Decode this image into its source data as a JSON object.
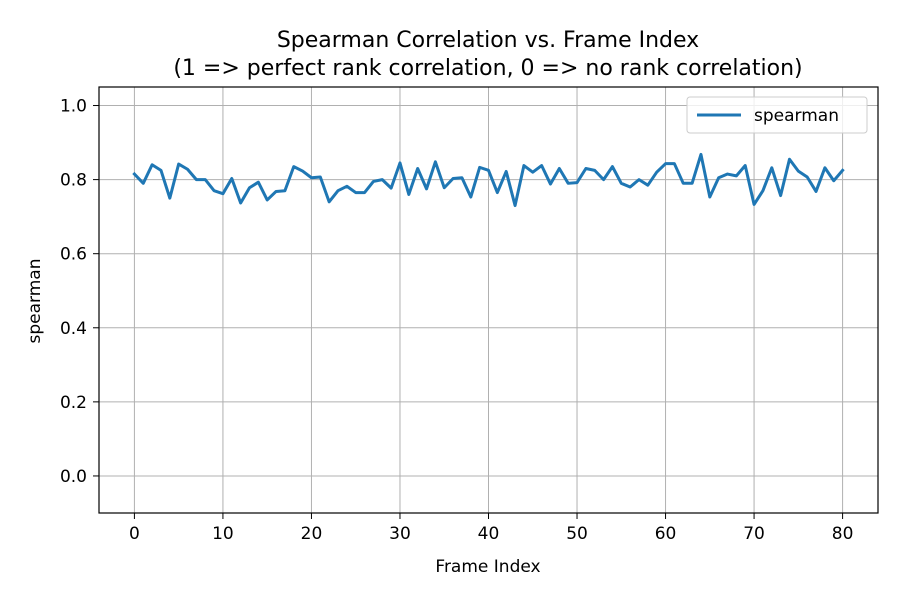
{
  "chart_data": {
    "type": "line",
    "title": "Spearman Correlation vs. Frame Index",
    "subtitle": "(1 => perfect rank correlation, 0 => no rank correlation)",
    "xlabel": "Frame Index",
    "ylabel": "spearman",
    "xlim": [
      -4,
      84
    ],
    "ylim": [
      -0.1,
      1.05
    ],
    "xticks": [
      0,
      10,
      20,
      30,
      40,
      50,
      60,
      70,
      80
    ],
    "xtick_labels": [
      "0",
      "10",
      "20",
      "30",
      "40",
      "50",
      "60",
      "70",
      "80"
    ],
    "yticks": [
      0.0,
      0.2,
      0.4,
      0.6,
      0.8,
      1.0
    ],
    "ytick_labels": [
      "0.0",
      "0.2",
      "0.4",
      "0.6",
      "0.8",
      "1.0"
    ],
    "grid": true,
    "legend_position": "top-right",
    "series": [
      {
        "name": "spearman",
        "color": "#1f77b4",
        "x": [
          0,
          1,
          2,
          3,
          4,
          5,
          6,
          7,
          8,
          9,
          10,
          11,
          12,
          13,
          14,
          15,
          16,
          17,
          18,
          19,
          20,
          21,
          22,
          23,
          24,
          25,
          26,
          27,
          28,
          29,
          30,
          31,
          32,
          33,
          34,
          35,
          36,
          37,
          38,
          39,
          40,
          41,
          42,
          43,
          44,
          45,
          46,
          47,
          48,
          49,
          50,
          51,
          52,
          53,
          54,
          55,
          56,
          57,
          58,
          59,
          60,
          61,
          62,
          63,
          64,
          65,
          66,
          67,
          68,
          69,
          70,
          71,
          72,
          73,
          74,
          75,
          76,
          77,
          78,
          79,
          80
        ],
        "y": [
          0.815,
          0.79,
          0.84,
          0.825,
          0.75,
          0.842,
          0.828,
          0.8,
          0.8,
          0.77,
          0.762,
          0.803,
          0.737,
          0.778,
          0.793,
          0.745,
          0.768,
          0.77,
          0.835,
          0.823,
          0.805,
          0.807,
          0.74,
          0.77,
          0.782,
          0.765,
          0.765,
          0.795,
          0.8,
          0.777,
          0.845,
          0.76,
          0.83,
          0.775,
          0.848,
          0.778,
          0.803,
          0.805,
          0.753,
          0.833,
          0.825,
          0.765,
          0.822,
          0.73,
          0.838,
          0.82,
          0.838,
          0.788,
          0.83,
          0.79,
          0.792,
          0.83,
          0.825,
          0.8,
          0.835,
          0.79,
          0.78,
          0.8,
          0.785,
          0.82,
          0.843,
          0.843,
          0.79,
          0.79,
          0.868,
          0.753,
          0.805,
          0.815,
          0.81,
          0.838,
          0.733,
          0.77,
          0.832,
          0.757,
          0.855,
          0.823,
          0.807,
          0.768,
          0.832,
          0.797,
          0.825
        ]
      }
    ]
  }
}
